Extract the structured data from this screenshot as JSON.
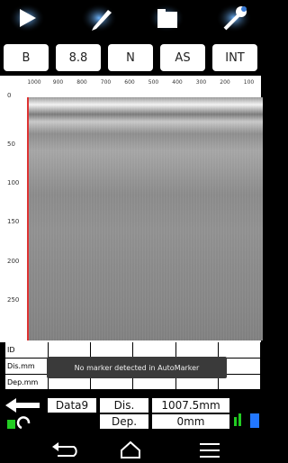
{
  "mode_buttons": [
    "B",
    "8.8",
    "N",
    "AS",
    "INT"
  ],
  "ruler": {
    "top": [
      "1000",
      "900",
      "800",
      "700",
      "600",
      "500",
      "400",
      "300",
      "200",
      "100"
    ],
    "left": [
      "0",
      "50",
      "100",
      "150",
      "200",
      "250"
    ]
  },
  "marker_table": {
    "rows": [
      "ID",
      "Dis.mm",
      "Dep.mm"
    ]
  },
  "toast": "No marker detected in AutoMarker",
  "status": {
    "file": "Data9",
    "distance_label": "Dis.",
    "distance": "1007.5mm",
    "depth_label": "Dep.",
    "depth": "0mm"
  }
}
